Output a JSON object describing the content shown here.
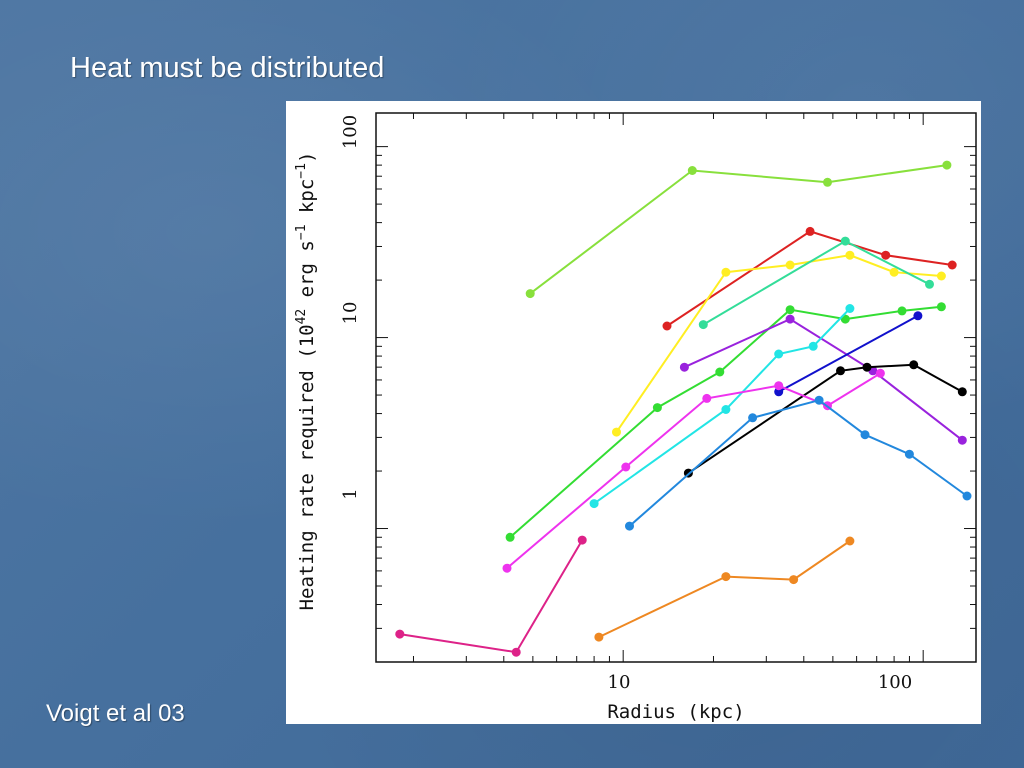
{
  "slide": {
    "title": "Heat must be distributed",
    "citation": "Voigt et al 03"
  },
  "colors": {
    "background": "#46709e",
    "text": "#ffffff",
    "chart_background": "#ffffff"
  },
  "chart_data": {
    "type": "line",
    "xscale": "log",
    "yscale": "log",
    "xlim": [
      1.5,
      150
    ],
    "ylim": [
      0.2,
      150
    ],
    "xticks": [
      10,
      100
    ],
    "xtick_labels": [
      "10",
      "100"
    ],
    "yticks": [
      1,
      10,
      100
    ],
    "ytick_labels": [
      "1",
      "10",
      "100"
    ],
    "xlabel": "Radius (kpc)",
    "ylabel_parts": [
      "Heating rate required  (10",
      "42",
      " erg s",
      "−1",
      " kpc",
      "−1",
      ")"
    ],
    "grid": false,
    "legend": "none",
    "series": [
      {
        "color": "#88e03c",
        "points": [
          [
            4.9,
            17
          ],
          [
            17,
            75
          ],
          [
            48,
            65
          ],
          [
            120,
            80
          ]
        ]
      },
      {
        "color": "#dd2222",
        "points": [
          [
            14,
            11.5
          ],
          [
            42,
            36
          ],
          [
            75,
            27
          ],
          [
            125,
            24
          ]
        ]
      },
      {
        "color": "#ffee22",
        "points": [
          [
            9.5,
            3.2
          ],
          [
            22,
            22
          ],
          [
            36,
            24
          ],
          [
            57,
            27
          ],
          [
            80,
            22
          ],
          [
            115,
            21
          ]
        ]
      },
      {
        "color": "#33dd99",
        "points": [
          [
            18.5,
            11.7
          ],
          [
            55,
            32
          ],
          [
            105,
            19
          ]
        ]
      },
      {
        "color": "#33dd33",
        "points": [
          [
            4.2,
            0.9
          ],
          [
            13,
            4.3
          ],
          [
            21,
            6.6
          ],
          [
            36,
            14
          ],
          [
            55,
            12.5
          ],
          [
            85,
            13.8
          ],
          [
            115,
            14.5
          ]
        ]
      },
      {
        "color": "#9922dd",
        "points": [
          [
            16,
            7
          ],
          [
            36,
            12.5
          ],
          [
            68,
            6.7
          ],
          [
            135,
            2.9
          ]
        ]
      },
      {
        "color": "#1111cc",
        "points": [
          [
            33,
            5.2
          ],
          [
            96,
            13
          ]
        ]
      },
      {
        "color": "#000000",
        "points": [
          [
            16.5,
            1.95
          ],
          [
            53,
            6.7
          ],
          [
            65,
            7
          ],
          [
            93,
            7.2
          ],
          [
            135,
            5.2
          ]
        ]
      },
      {
        "color": "#22e5e5",
        "points": [
          [
            8,
            1.35
          ],
          [
            22,
            4.2
          ],
          [
            33,
            8.2
          ],
          [
            43,
            9
          ],
          [
            57,
            14.2
          ]
        ]
      },
      {
        "color": "#ee33ee",
        "points": [
          [
            4.1,
            0.62
          ],
          [
            10.2,
            2.1
          ],
          [
            19,
            4.8
          ],
          [
            33,
            5.6
          ],
          [
            48,
            4.4
          ],
          [
            72,
            6.5
          ]
        ]
      },
      {
        "color": "#2288dd",
        "points": [
          [
            10.5,
            1.03
          ],
          [
            27,
            3.8
          ],
          [
            45,
            4.7
          ],
          [
            64,
            3.1
          ],
          [
            90,
            2.45
          ],
          [
            140,
            1.48
          ]
        ]
      },
      {
        "color": "#dd2288",
        "points": [
          [
            1.8,
            0.28
          ],
          [
            4.4,
            0.225
          ],
          [
            7.3,
            0.87
          ]
        ]
      },
      {
        "color": "#ee8822",
        "points": [
          [
            8.3,
            0.27
          ],
          [
            22,
            0.56
          ],
          [
            37,
            0.54
          ],
          [
            57,
            0.86
          ]
        ]
      }
    ]
  }
}
